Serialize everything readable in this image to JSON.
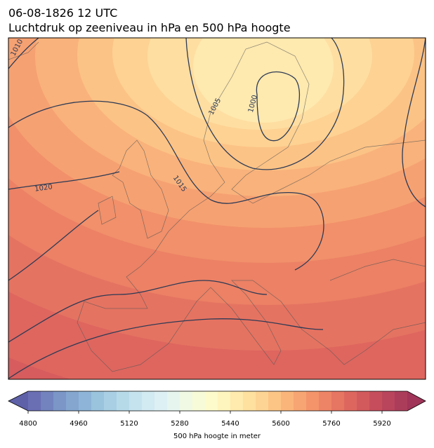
{
  "header": {
    "title": "06-08-1826 12 UTC",
    "subtitle": "Luchtdruk op zeeniveau in hPa en 500 hPa hoogte"
  },
  "map": {
    "contour_labels": [
      1010,
      1005,
      1000,
      1015,
      1020
    ]
  },
  "colorbar": {
    "range": [
      4800,
      6000
    ],
    "ticks": [
      4800,
      4960,
      5120,
      5280,
      5440,
      5600,
      5760,
      5920
    ],
    "label": "500 hPa hoogte in meter",
    "colors": [
      "#6a6fb4",
      "#7283be",
      "#7b96c7",
      "#84a6cf",
      "#8eb5d7",
      "#9ac3de",
      "#a8cfe4",
      "#b7dae9",
      "#c5e3ee",
      "#d2eaf2",
      "#ddf0f3",
      "#e7f5ef",
      "#f0f9e4",
      "#f7fbd7",
      "#fdfbcb",
      "#fef4bd",
      "#feebad",
      "#fee09f",
      "#fdd493",
      "#fcc586",
      "#fab57b",
      "#f7a572",
      "#f3946b",
      "#ee8466",
      "#e67562",
      "#dd675f",
      "#d25a5d",
      "#c64e5c",
      "#b9455c",
      "#ab3d5b"
    ],
    "under_color": "#5e60a8",
    "over_color": "#a03459"
  }
}
